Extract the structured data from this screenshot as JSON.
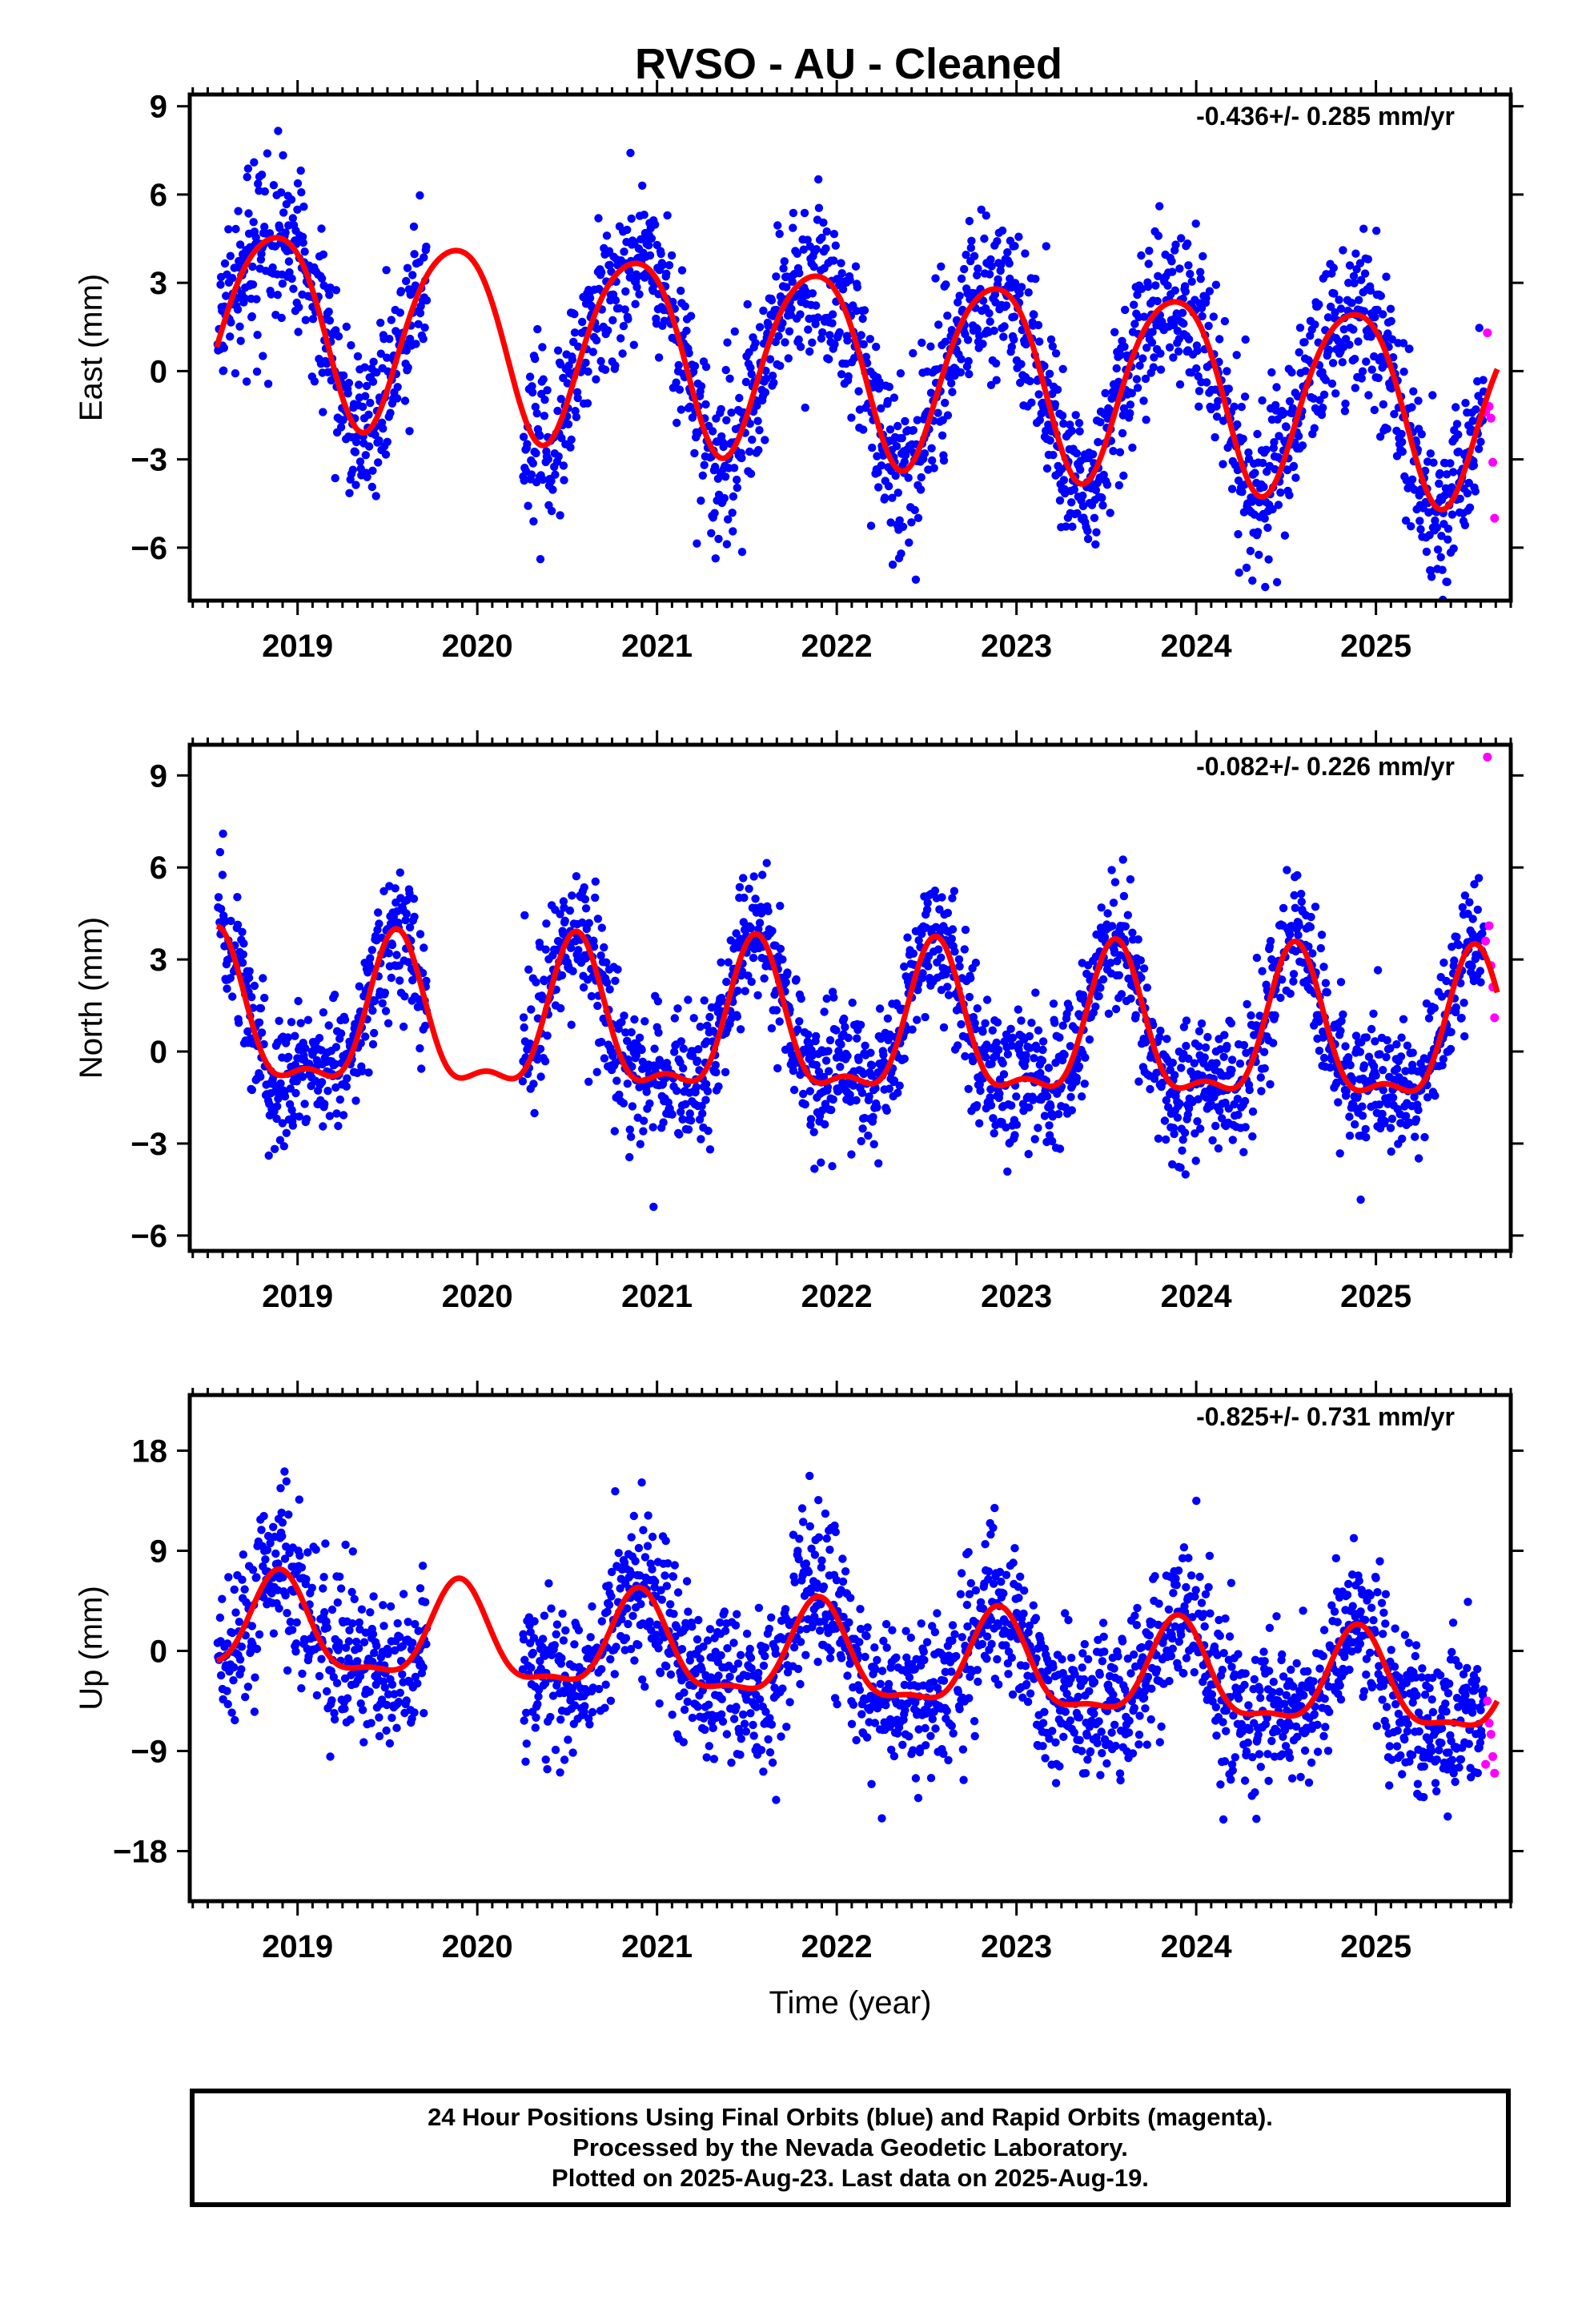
{
  "title": "RVSO  - AU - Cleaned",
  "colors": {
    "final": "#0000ff",
    "rapid": "#ff00ff",
    "model": "#ff0000",
    "frame": "#000000"
  },
  "chart_data": [
    {
      "type": "scatter",
      "component": "east",
      "ylabel": "East (mm)",
      "xlabel": "",
      "rate": "-0.436+/- 0.285 mm/yr",
      "xlim": [
        2018.4,
        2025.75
      ],
      "ylim": [
        -7.8,
        9.4
      ],
      "yticks": [
        -6,
        -3,
        0,
        3,
        6,
        9
      ],
      "xticks": [
        2019,
        2020,
        2021,
        2022,
        2023,
        2024,
        2025
      ],
      "model": {
        "mean": 0.35,
        "trend": -0.436,
        "t0": 2022.0,
        "amp": 3.2,
        "peak_phase": 0.87,
        "ann2_amp": 0.4,
        "ann2_phase": 0.1,
        "curve_start": 2018.55,
        "curve_end": 2025.68
      },
      "noise": 1.4,
      "gaps": [
        [
          2019.72,
          2020.25
        ]
      ],
      "rapid_points": [
        [
          2025.62,
          1.3
        ],
        [
          2025.63,
          -1.2
        ],
        [
          2025.64,
          -1.6
        ],
        [
          2025.65,
          -3.1
        ],
        [
          2025.66,
          -5.0
        ],
        [
          2025.61,
          -1.4
        ]
      ]
    },
    {
      "type": "scatter",
      "component": "north",
      "ylabel": "North (mm)",
      "xlabel": "",
      "rate": "-0.082+/- 0.226 mm/yr",
      "xlim": [
        2018.4,
        2025.75
      ],
      "ylim": [
        -6.5,
        10.0
      ],
      "yticks": [
        -6,
        -3,
        0,
        3,
        6,
        9
      ],
      "xticks": [
        2019,
        2020,
        2021,
        2022,
        2023,
        2024,
        2025
      ],
      "model": {
        "mean": 0.6,
        "trend": -0.082,
        "t0": 2022.0,
        "amp": 2.3,
        "peak_phase": 0.55,
        "ann2_amp": 0.9,
        "ann2_phase": 0.05,
        "curve_start": 2018.55,
        "curve_end": 2025.68
      },
      "noise": 1.1,
      "gaps": [
        [
          2019.72,
          2020.25
        ]
      ],
      "rapid_points": [
        [
          2025.62,
          9.6
        ],
        [
          2025.63,
          4.1
        ],
        [
          2025.64,
          2.8
        ],
        [
          2025.65,
          2.1
        ],
        [
          2025.66,
          1.1
        ],
        [
          2025.61,
          3.6
        ]
      ]
    },
    {
      "type": "scatter",
      "component": "up",
      "ylabel": "Up (mm)",
      "xlabel": "Time (year)",
      "rate": "-0.825+/- 0.731 mm/yr",
      "xlim": [
        2018.4,
        2025.75
      ],
      "ylim": [
        -22.5,
        23.0
      ],
      "yticks": [
        -18,
        -9,
        0,
        9,
        18
      ],
      "xticks": [
        2019,
        2020,
        2021,
        2022,
        2023,
        2024,
        2025
      ],
      "model": {
        "mean": -0.8,
        "trend": -0.825,
        "t0": 2022.0,
        "amp": 4.2,
        "peak_phase": 0.9,
        "ann2_amp": 1.4,
        "ann2_phase": 0.4,
        "curve_start": 2018.55,
        "curve_end": 2025.68
      },
      "noise": 3.6,
      "gaps": [
        [
          2019.72,
          2020.25
        ]
      ],
      "rapid_points": [
        [
          2025.62,
          -4.5
        ],
        [
          2025.63,
          -6.5
        ],
        [
          2025.64,
          -7.5
        ],
        [
          2025.65,
          -9.5
        ],
        [
          2025.66,
          -11.0
        ],
        [
          2025.61,
          -10.2
        ]
      ]
    }
  ],
  "footer": {
    "line1": "24 Hour Positions Using Final Orbits (blue) and Rapid Orbits (magenta).",
    "line2": "Processed by the Nevada Geodetic Laboratory.",
    "line3": "Plotted on 2025-Aug-23. Last data on 2025-Aug-19."
  }
}
